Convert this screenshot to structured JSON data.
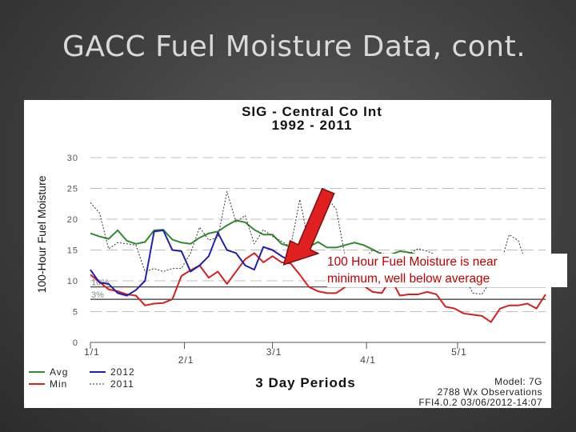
{
  "slide": {
    "title": "GACC Fuel Moisture Data, cont."
  },
  "callout": {
    "line1": "100 Hour Fuel Moisture is near",
    "line2": "minimum, well below average"
  },
  "footer": {
    "model": "Model: 7G",
    "observations": "2788 Wx Observations",
    "stamp": "FFI4.0.2 03/06/2012-14:07"
  },
  "colors": {
    "avg": "#2e8b2e",
    "min": "#d42020",
    "s2012": "#2020b0",
    "s2011": "#333333",
    "arrow": "#e02020"
  },
  "chart_data": {
    "type": "line",
    "title": "SIG - Central Co Int",
    "subtitle": "1992 - 2011",
    "ylabel": "100-Hour Fuel Moisture",
    "xlabel": "3 Day Periods",
    "ylim": [
      0,
      30
    ],
    "xlim": [
      0,
      50
    ],
    "yticks": [
      0,
      5,
      10,
      15,
      20,
      25,
      30
    ],
    "xticks": [
      {
        "pos": 0,
        "label": "1/1"
      },
      {
        "pos": 10.33,
        "label": "2/1"
      },
      {
        "pos": 20,
        "label": "3/1"
      },
      {
        "pos": 30.33,
        "label": "4/1"
      },
      {
        "pos": 40.33,
        "label": "5/1"
      }
    ],
    "grid": true,
    "reference_lines": [
      {
        "label": "10%",
        "value": 9
      },
      {
        "label": "3%",
        "value": 7
      }
    ],
    "annotation": {
      "type": "arrow",
      "target": [
        21.5,
        13
      ]
    },
    "series": [
      {
        "name": "Avg",
        "style": "solid",
        "color": "#2e8b2e",
        "x": [
          0,
          1,
          2,
          3,
          4,
          5,
          6,
          7,
          8,
          9,
          10,
          11,
          12,
          13,
          14,
          15,
          16,
          17,
          18,
          19,
          20,
          21,
          22,
          23,
          24,
          25,
          26,
          27,
          28,
          29,
          30,
          31,
          32,
          33,
          34,
          35,
          36,
          37,
          38,
          39,
          40,
          41,
          42,
          43,
          44,
          45,
          46,
          47,
          48,
          49,
          50
        ],
        "values": [
          17.7,
          17.2,
          16.8,
          18.2,
          16.5,
          16.0,
          16.3,
          18.2,
          18.3,
          16.7,
          16.2,
          16.0,
          17.0,
          17.7,
          18.0,
          19.0,
          19.8,
          19.5,
          18.3,
          17.5,
          17.5,
          16.0,
          15.5,
          15.4,
          15.5,
          16.3,
          15.4,
          15.4,
          15.8,
          16.2,
          15.8,
          15.1,
          14.3,
          14.3,
          14.8,
          14.6,
          14.2,
          13.8,
          13.4,
          13.2,
          12.9,
          12.0,
          11.8,
          11.8,
          11.3,
          10.7,
          10.6,
          10.6,
          10.6,
          10.6,
          10.4
        ]
      },
      {
        "name": "Min",
        "style": "solid",
        "color": "#d42020",
        "x": [
          0,
          1,
          2,
          3,
          4,
          5,
          6,
          7,
          8,
          9,
          10,
          11,
          12,
          13,
          14,
          15,
          16,
          17,
          18,
          19,
          20,
          21,
          22,
          23,
          24,
          25,
          26,
          27,
          28,
          29,
          30,
          31,
          32,
          33,
          34,
          35,
          36,
          37,
          38,
          39,
          40,
          41,
          42,
          43,
          44,
          45,
          46,
          47,
          48,
          49,
          50
        ],
        "values": [
          11.0,
          9.8,
          8.6,
          8.3,
          7.8,
          7.6,
          6.0,
          6.3,
          6.4,
          7.0,
          10.8,
          11.7,
          12.5,
          10.5,
          11.5,
          9.5,
          11.5,
          13.5,
          14.5,
          13.0,
          14.0,
          13.0,
          12.8,
          11.0,
          9.0,
          8.3,
          8.0,
          8.0,
          9.0,
          11.0,
          9.2,
          8.2,
          8.0,
          10.3,
          7.6,
          7.8,
          7.8,
          8.2,
          7.8,
          5.8,
          5.5,
          4.7,
          4.5,
          4.3,
          3.3,
          5.5,
          6.0,
          6.0,
          6.3,
          5.5,
          7.8
        ]
      },
      {
        "name": "2012",
        "style": "solid",
        "color": "#2020b0",
        "x": [
          0,
          1,
          2,
          3,
          4,
          5,
          6,
          7,
          8,
          9,
          10,
          11,
          12,
          13,
          14,
          15,
          16,
          17,
          18,
          19,
          20,
          21,
          22
        ],
        "values": [
          11.8,
          9.7,
          9.5,
          8.0,
          7.6,
          8.5,
          10.0,
          18.0,
          18.2,
          15.0,
          14.8,
          11.5,
          12.5,
          14.0,
          17.8,
          15.0,
          14.5,
          12.5,
          11.8,
          15.5,
          15.0,
          14.0,
          13.2
        ]
      },
      {
        "name": "2011",
        "style": "dotted",
        "color": "#333333",
        "x": [
          0,
          1,
          2,
          3,
          4,
          5,
          6,
          7,
          8,
          9,
          10,
          11,
          12,
          13,
          14,
          15,
          16,
          17,
          18,
          19,
          20,
          21,
          22,
          23,
          24,
          25,
          26,
          27,
          28,
          29,
          30,
          31,
          32,
          33,
          34,
          35,
          36,
          37,
          38,
          39,
          40,
          41,
          42,
          43,
          44,
          45,
          46,
          47,
          48,
          49,
          50
        ],
        "values": [
          22.7,
          21.0,
          15.2,
          16.2,
          16.0,
          15.8,
          11.5,
          12.0,
          11.5,
          12.0,
          12.0,
          14.5,
          18.7,
          16.6,
          17.0,
          24.5,
          19.5,
          20.6,
          16.0,
          18.3,
          17.2,
          16.4,
          15.5,
          23.2,
          16.0,
          21.4,
          23.5,
          21.6,
          13.8,
          13.3,
          13.4,
          15.0,
          14.5,
          14.0,
          14.0,
          14.4,
          15.2,
          14.8,
          14.2,
          14.0,
          12.6,
          11.0,
          8.0,
          7.8,
          10.0,
          12.5,
          17.5,
          16.5,
          12.3,
          10.6,
          12.0
        ]
      }
    ],
    "legend": {
      "placement": "bottom-left",
      "entries": [
        {
          "name": "Avg"
        },
        {
          "name": "2012"
        },
        {
          "name": "Min"
        },
        {
          "name": "2011"
        }
      ]
    }
  }
}
